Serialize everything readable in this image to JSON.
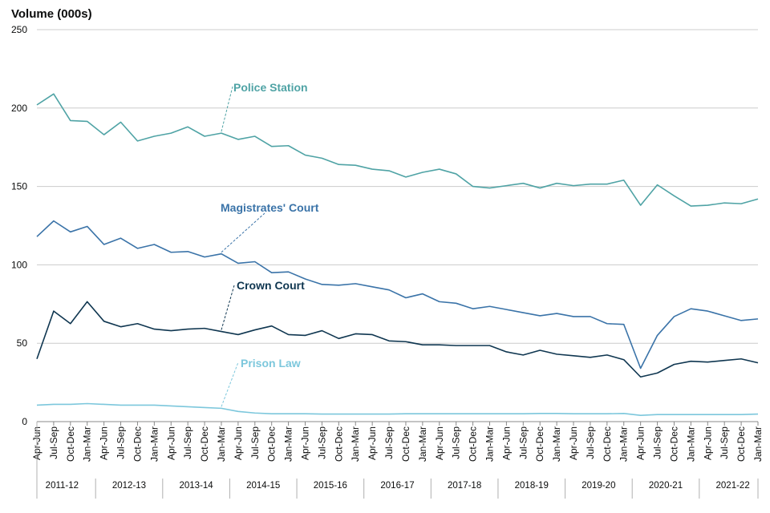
{
  "chart_data": {
    "type": "line",
    "ylabel": "Volume (000s)",
    "xlabel": "",
    "ylim": [
      0,
      250
    ],
    "yticks": [
      0,
      50,
      100,
      150,
      200,
      250
    ],
    "grid": true,
    "legend": "inline-annotations",
    "categories": [
      "Apr-Jun",
      "Jul-Sep",
      "Oct-Dec",
      "Jan-Mar",
      "Apr-Jun",
      "Jul-Sep",
      "Oct-Dec",
      "Jan-Mar",
      "Apr-Jun",
      "Jul-Sep",
      "Oct-Dec",
      "Jan-Mar",
      "Apr-Jun",
      "Jul-Sep",
      "Oct-Dec",
      "Jan-Mar",
      "Apr-Jun",
      "Jul-Sep",
      "Oct-Dec",
      "Jan-Mar",
      "Apr-Jun",
      "Jul-Sep",
      "Oct-Dec",
      "Jan-Mar",
      "Apr-Jun",
      "Jul-Sep",
      "Oct-Dec",
      "Jan-Mar",
      "Apr-Jun",
      "Jul-Sep",
      "Oct-Dec",
      "Jan-Mar",
      "Apr-Jun",
      "Jul-Sep",
      "Oct-Dec",
      "Jan-Mar",
      "Apr-Jun",
      "Jul-Sep",
      "Oct-Dec",
      "Jan-Mar",
      "Apr-Jun",
      "Jul-Sep",
      "Oct-Dec",
      "Jan-Mar"
    ],
    "financial_years": [
      "2011-12",
      "2012-13",
      "2013-14",
      "2014-15",
      "2015-16",
      "2016-17",
      "2017-18",
      "2018-19",
      "2019-20",
      "2020-21",
      "2021-22"
    ],
    "series": [
      {
        "name": "Police Station",
        "color": "#4fa3a5",
        "label_index": 11,
        "values": [
          202,
          209,
          192,
          191.5,
          183,
          191,
          179,
          182,
          184,
          188,
          182,
          184,
          180,
          182,
          175.5,
          176,
          170,
          168,
          164,
          163.5,
          161,
          160,
          156,
          159,
          161,
          158,
          150,
          149,
          150.5,
          152,
          149,
          152,
          150.5,
          151.5,
          151.5,
          154,
          138,
          151,
          144,
          137.5,
          138,
          139.5,
          139,
          142
        ]
      },
      {
        "name": "Magistrates' Court",
        "color": "#3a73a8",
        "label_index": 11,
        "values": [
          118,
          128,
          121,
          124.5,
          113,
          117,
          110.5,
          113,
          108,
          108.5,
          105,
          107,
          101,
          102,
          95,
          95.5,
          91,
          87.5,
          87,
          88,
          86,
          84,
          79,
          81.5,
          76.5,
          75.5,
          72,
          73.5,
          71.5,
          69.5,
          67.5,
          69,
          67,
          67,
          62.5,
          62,
          34,
          55,
          67,
          72,
          70.5,
          67.5,
          64.5,
          65.5
        ]
      },
      {
        "name": "Crown Court",
        "color": "#0f3650",
        "label_index": 11,
        "values": [
          40,
          70.5,
          62.5,
          76.5,
          64,
          60.5,
          62.5,
          59,
          58,
          59,
          59.5,
          57.5,
          55.5,
          58.5,
          61,
          55.5,
          55,
          58,
          53,
          56,
          55.5,
          51.5,
          51,
          49,
          49,
          48.5,
          48.5,
          48.5,
          44.5,
          42.5,
          45.5,
          43,
          42,
          41,
          42.5,
          39.5,
          28.5,
          31,
          36.5,
          38.5,
          38,
          39,
          40,
          37.5
        ]
      },
      {
        "name": "Prison Law",
        "color": "#7cc7dc",
        "label_index": 11,
        "values": [
          10.5,
          11,
          11,
          11.5,
          11,
          10.5,
          10.5,
          10.5,
          10,
          9.5,
          9,
          8.5,
          6.5,
          5.5,
          5,
          5,
          5,
          4.8,
          4.8,
          4.8,
          4.8,
          4.8,
          5,
          5,
          5,
          5,
          5,
          5,
          5,
          5,
          5.2,
          5.2,
          5,
          5,
          5,
          5.2,
          4,
          4.5,
          4.5,
          4.5,
          4.5,
          4.5,
          4.5,
          4.8
        ]
      }
    ]
  }
}
